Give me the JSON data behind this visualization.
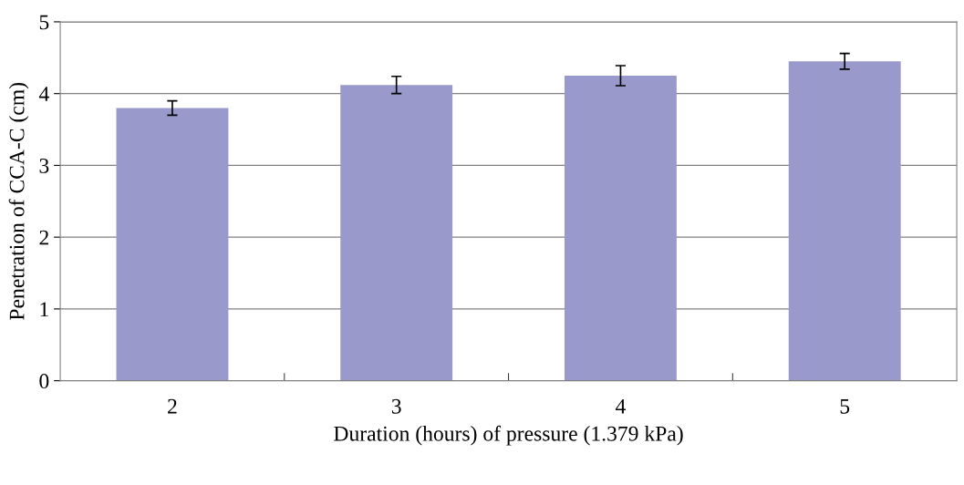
{
  "chart_data": {
    "type": "bar",
    "xlabel": "Duration (hours) of pressure (1.379 kPa)",
    "ylabel": "Penetration of CCA-C (cm)",
    "categories": [
      "2",
      "3",
      "4",
      "5"
    ],
    "values": [
      3.8,
      4.12,
      4.25,
      4.45
    ],
    "errors": [
      0.1,
      0.12,
      0.14,
      0.11
    ],
    "color": "#9999cc",
    "ylim": [
      0,
      5
    ],
    "yticks": [
      0,
      1,
      2,
      3,
      4,
      5
    ],
    "grid": "y"
  }
}
